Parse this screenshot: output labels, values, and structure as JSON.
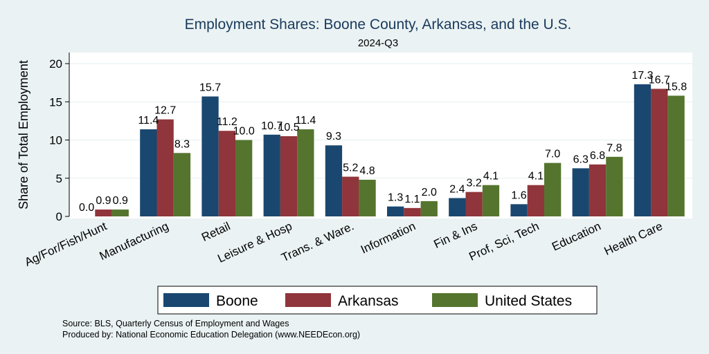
{
  "chart_data": {
    "type": "bar",
    "title": "Employment Shares: Boone County, Arkansas, and the U.S.",
    "subtitle": "2024-Q3",
    "ylabel": "Share of Total Employment",
    "xlabel": "",
    "ylim": [
      0,
      21.5
    ],
    "yticks": [
      0,
      5,
      10,
      15,
      20
    ],
    "grid": true,
    "legend_position": "bottom",
    "categories": [
      "Ag/For/Fish/Hunt",
      "Manufacturing",
      "Retail",
      "Leisure & Hosp",
      "Trans. & Ware.",
      "Information",
      "Fin & Ins",
      "Prof, Sci, Tech",
      "Education",
      "Health Care"
    ],
    "series": [
      {
        "name": "Boone",
        "color": "#1a476f",
        "values": [
          0.0,
          11.4,
          15.7,
          10.7,
          9.3,
          1.3,
          2.4,
          1.6,
          6.3,
          17.3
        ]
      },
      {
        "name": "Arkansas",
        "color": "#90353b",
        "values": [
          0.9,
          12.7,
          11.2,
          10.5,
          5.2,
          1.1,
          3.2,
          4.1,
          6.8,
          16.7
        ]
      },
      {
        "name": "United States",
        "color": "#55752f",
        "values": [
          0.9,
          8.3,
          10.0,
          11.4,
          4.8,
          2.0,
          4.1,
          7.0,
          7.8,
          15.8
        ]
      }
    ]
  },
  "notes": [
    "Source: BLS, Quarterly Census of Employment and Wages",
    "Produced by: National Economic Education Delegation (www.NEEDEcon.org)"
  ]
}
